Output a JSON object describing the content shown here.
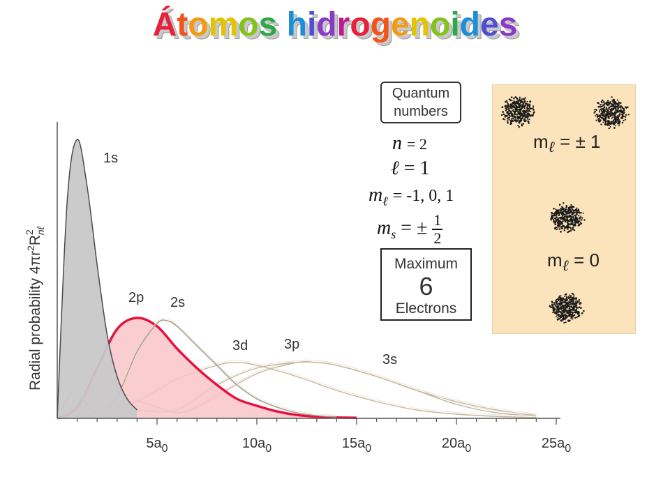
{
  "title": "Átomos hidrogenoides",
  "title_colors": [
    "#e8213a",
    "#f2551c",
    "#f39a12",
    "#e4c300",
    "#86c21e",
    "#2fa84a",
    "#1d8fd9",
    "#4f4fd6",
    "#8a3ac8",
    "#c0188f"
  ],
  "colors": {
    "accent_2p": "#e8113d",
    "fill_2p": "#f9c4c8",
    "fill_1s": "#c8c8c8",
    "curve_faint": "#c4b59a"
  },
  "quantum": {
    "header_line1": "Quantum",
    "header_line2": "numbers",
    "n_sym": "n",
    "n_val": "= 2",
    "l_sym": "ℓ",
    "l_val": "= 1",
    "ml_sym": "m",
    "ml_sub": "ℓ",
    "ml_val": "= -1, 0, 1",
    "ms_sym": "m",
    "ms_sub": "s",
    "ms_val": "= ±",
    "ms_num": "1",
    "ms_den": "2"
  },
  "maximum": {
    "line1": "Maximum",
    "line2": "6",
    "line3": "Electrons"
  },
  "orbitals": {
    "ml_pm1": {
      "m": "m",
      "sub": "ℓ",
      "val": "= ± 1"
    },
    "ml_0": {
      "m": "m",
      "sub": "ℓ",
      "val": "= 0"
    }
  },
  "chart_data": {
    "type": "line",
    "ylabel": "Radial probability 4πr²R²nℓ",
    "xlim": [
      0,
      25
    ],
    "x_unit": "a0",
    "xticks": [
      5,
      10,
      15,
      20,
      25
    ],
    "xtick_labels": [
      "5a0",
      "10a0",
      "15a0",
      "20a0",
      "25a0"
    ],
    "series": [
      {
        "name": "1s",
        "filled": true,
        "x": [
          0,
          0.5,
          1,
          1.5,
          2,
          2.5,
          3,
          3.5,
          4
        ],
        "y": [
          0,
          0.78,
          1.0,
          0.83,
          0.55,
          0.3,
          0.15,
          0.07,
          0.03
        ]
      },
      {
        "name": "2p",
        "filled": true,
        "x": [
          0,
          1,
          2,
          3,
          4,
          5,
          6,
          7,
          8,
          9,
          10,
          11,
          12,
          13,
          14,
          15
        ],
        "y": [
          0,
          0.04,
          0.18,
          0.32,
          0.36,
          0.33,
          0.25,
          0.18,
          0.12,
          0.07,
          0.045,
          0.025,
          0.012,
          0.006,
          0.003,
          0.002
        ]
      },
      {
        "name": "2s",
        "filled": false,
        "x": [
          0,
          0.5,
          1,
          2,
          3,
          4,
          5,
          5.5,
          6,
          7,
          8,
          9,
          10,
          11,
          12,
          13,
          14
        ],
        "y": [
          0,
          0.07,
          0.09,
          0.02,
          0.08,
          0.24,
          0.34,
          0.35,
          0.33,
          0.26,
          0.19,
          0.12,
          0.07,
          0.04,
          0.02,
          0.01,
          0.005
        ]
      },
      {
        "name": "3d",
        "filled": false,
        "x": [
          0,
          2,
          4,
          6,
          8,
          9,
          10,
          12,
          14,
          16,
          18,
          20,
          22,
          24
        ],
        "y": [
          0,
          0.01,
          0.06,
          0.14,
          0.19,
          0.2,
          0.19,
          0.15,
          0.1,
          0.06,
          0.03,
          0.015,
          0.007,
          0.003
        ]
      },
      {
        "name": "3p",
        "filled": false,
        "x": [
          0,
          1,
          2,
          3,
          4,
          6,
          8,
          10,
          12,
          13,
          14,
          16,
          18,
          20,
          22,
          24
        ],
        "y": [
          0,
          0.02,
          0.05,
          0.05,
          0.03,
          0.03,
          0.12,
          0.18,
          0.2,
          0.2,
          0.19,
          0.15,
          0.1,
          0.05,
          0.02,
          0.008
        ]
      },
      {
        "name": "3s",
        "filled": false,
        "x": [
          0,
          0.5,
          1,
          1.5,
          2,
          3,
          4,
          5,
          6,
          7,
          8,
          10,
          12,
          13,
          14,
          16,
          18,
          20,
          22,
          24
        ],
        "y": [
          0,
          0.03,
          0.03,
          0.01,
          0.02,
          0.05,
          0.06,
          0.04,
          0.02,
          0.04,
          0.08,
          0.16,
          0.2,
          0.2,
          0.19,
          0.15,
          0.1,
          0.06,
          0.03,
          0.01
        ]
      }
    ]
  }
}
